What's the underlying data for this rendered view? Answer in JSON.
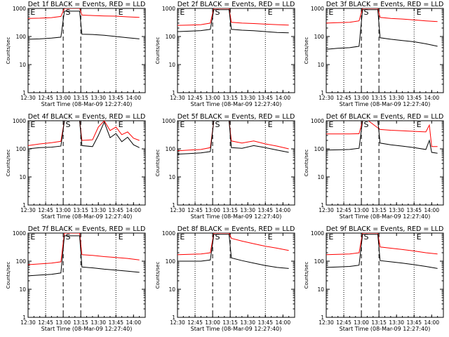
{
  "chart_data": {
    "type": "line",
    "colors": {
      "events": "#000000",
      "lld": "#ff0000",
      "axes": "#000000"
    },
    "x_ticks": [
      "12:30",
      "12:45",
      "13:00",
      "13:15",
      "13:30",
      "13:45",
      "14:00"
    ],
    "x_tick_minutes": [
      0,
      15,
      30,
      45,
      60,
      75,
      90
    ],
    "xlim_minutes": [
      0,
      100
    ],
    "xlabel": "Start Time (08-Mar-09 12:27:40)",
    "ylabel": "Counts/sec",
    "y_ticks": [
      "1",
      "10",
      "100",
      "1000"
    ],
    "y_tick_values": [
      1,
      10,
      100,
      1000
    ],
    "ylim": [
      1,
      1000
    ],
    "markers": {
      "labels": [
        "E",
        "S",
        "E"
      ],
      "dotted_minutes": [
        15,
        75
      ],
      "dashed_minutes": [
        30,
        45
      ],
      "label_minutes": [
        2,
        32,
        77
      ]
    },
    "panels": [
      {
        "title": "Det 1f BLACK = Events, RED = LLD",
        "events": [
          [
            0,
            80
          ],
          [
            10,
            82
          ],
          [
            20,
            88
          ],
          [
            28,
            95
          ],
          [
            31,
            800
          ],
          [
            44,
            800
          ],
          [
            46,
            120
          ],
          [
            55,
            118
          ],
          [
            65,
            110
          ],
          [
            75,
            100
          ],
          [
            85,
            90
          ],
          [
            95,
            82
          ]
        ],
        "lld": [
          [
            0,
            440
          ],
          [
            10,
            450
          ],
          [
            20,
            470
          ],
          [
            28,
            520
          ],
          [
            31,
            1000
          ],
          [
            44,
            1000
          ],
          [
            46,
            580
          ],
          [
            55,
            560
          ],
          [
            65,
            540
          ],
          [
            75,
            530
          ],
          [
            85,
            500
          ],
          [
            95,
            480
          ]
        ]
      },
      {
        "title": "Det 2f BLACK = Events, RED = LLD",
        "events": [
          [
            0,
            150
          ],
          [
            10,
            155
          ],
          [
            20,
            162
          ],
          [
            28,
            180
          ],
          [
            31,
            900
          ],
          [
            44,
            900
          ],
          [
            46,
            180
          ],
          [
            55,
            168
          ],
          [
            65,
            160
          ],
          [
            75,
            150
          ],
          [
            85,
            140
          ],
          [
            95,
            135
          ]
        ],
        "lld": [
          [
            0,
            250
          ],
          [
            10,
            255
          ],
          [
            20,
            265
          ],
          [
            28,
            300
          ],
          [
            31,
            1000
          ],
          [
            44,
            1000
          ],
          [
            46,
            320
          ],
          [
            55,
            300
          ],
          [
            65,
            290
          ],
          [
            75,
            275
          ],
          [
            85,
            265
          ],
          [
            95,
            255
          ]
        ]
      },
      {
        "title": "Det 3f BLACK = Events, RED = LLD",
        "events": [
          [
            0,
            35
          ],
          [
            10,
            38
          ],
          [
            20,
            40
          ],
          [
            28,
            45
          ],
          [
            31,
            900
          ],
          [
            44,
            900
          ],
          [
            46,
            90
          ],
          [
            55,
            80
          ],
          [
            65,
            72
          ],
          [
            75,
            65
          ],
          [
            85,
            55
          ],
          [
            95,
            45
          ]
        ],
        "lld": [
          [
            0,
            300
          ],
          [
            10,
            310
          ],
          [
            20,
            320
          ],
          [
            28,
            360
          ],
          [
            31,
            1000
          ],
          [
            44,
            1000
          ],
          [
            46,
            480
          ],
          [
            55,
            440
          ],
          [
            65,
            420
          ],
          [
            75,
            390
          ],
          [
            85,
            360
          ],
          [
            95,
            340
          ]
        ]
      },
      {
        "title": "Det 4f BLACK = Events, RED = LLD",
        "events": [
          [
            0,
            100
          ],
          [
            10,
            110
          ],
          [
            20,
            115
          ],
          [
            28,
            125
          ],
          [
            31,
            1000
          ],
          [
            44,
            1000
          ],
          [
            46,
            130
          ],
          [
            55,
            120
          ],
          [
            60,
            300
          ],
          [
            65,
            900
          ],
          [
            70,
            250
          ],
          [
            75,
            350
          ],
          [
            80,
            180
          ],
          [
            85,
            260
          ],
          [
            90,
            140
          ],
          [
            95,
            110
          ]
        ],
        "lld": [
          [
            0,
            130
          ],
          [
            10,
            150
          ],
          [
            20,
            165
          ],
          [
            28,
            185
          ],
          [
            31,
            1000
          ],
          [
            44,
            1000
          ],
          [
            46,
            200
          ],
          [
            55,
            210
          ],
          [
            60,
            600
          ],
          [
            65,
            1000
          ],
          [
            70,
            450
          ],
          [
            75,
            600
          ],
          [
            80,
            320
          ],
          [
            85,
            400
          ],
          [
            90,
            240
          ],
          [
            95,
            200
          ]
        ]
      },
      {
        "title": "Det 5f BLACK = Events, RED = LLD",
        "events": [
          [
            0,
            65
          ],
          [
            10,
            68
          ],
          [
            20,
            72
          ],
          [
            28,
            80
          ],
          [
            31,
            1000
          ],
          [
            44,
            1000
          ],
          [
            46,
            110
          ],
          [
            55,
            105
          ],
          [
            65,
            130
          ],
          [
            75,
            110
          ],
          [
            85,
            90
          ],
          [
            95,
            75
          ]
        ],
        "lld": [
          [
            0,
            85
          ],
          [
            10,
            90
          ],
          [
            20,
            95
          ],
          [
            28,
            110
          ],
          [
            31,
            1000
          ],
          [
            44,
            1000
          ],
          [
            46,
            190
          ],
          [
            55,
            160
          ],
          [
            65,
            190
          ],
          [
            75,
            150
          ],
          [
            85,
            125
          ],
          [
            95,
            100
          ]
        ]
      },
      {
        "title": "Det 6f BLACK = Events, RED = LLD",
        "events": [
          [
            0,
            90
          ],
          [
            10,
            92
          ],
          [
            20,
            95
          ],
          [
            28,
            105
          ],
          [
            31,
            1000
          ],
          [
            44,
            1000
          ],
          [
            46,
            160
          ],
          [
            55,
            140
          ],
          [
            65,
            125
          ],
          [
            75,
            110
          ],
          [
            85,
            95
          ],
          [
            88,
            200
          ],
          [
            90,
            75
          ],
          [
            95,
            70
          ]
        ],
        "lld": [
          [
            0,
            340
          ],
          [
            10,
            340
          ],
          [
            20,
            340
          ],
          [
            28,
            345
          ],
          [
            31,
            1000
          ],
          [
            36,
            1000
          ],
          [
            44,
            560
          ],
          [
            46,
            490
          ],
          [
            55,
            460
          ],
          [
            65,
            440
          ],
          [
            75,
            420
          ],
          [
            85,
            400
          ],
          [
            88,
            700
          ],
          [
            90,
            120
          ],
          [
            95,
            120
          ]
        ]
      },
      {
        "title": "Det 7f BLACK = Events, RED = LLD",
        "events": [
          [
            0,
            30
          ],
          [
            10,
            32
          ],
          [
            20,
            34
          ],
          [
            28,
            38
          ],
          [
            31,
            800
          ],
          [
            44,
            800
          ],
          [
            46,
            62
          ],
          [
            55,
            58
          ],
          [
            65,
            52
          ],
          [
            75,
            48
          ],
          [
            85,
            44
          ],
          [
            95,
            40
          ]
        ],
        "lld": [
          [
            0,
            75
          ],
          [
            10,
            80
          ],
          [
            20,
            85
          ],
          [
            28,
            95
          ],
          [
            31,
            1000
          ],
          [
            44,
            1000
          ],
          [
            46,
            170
          ],
          [
            55,
            160
          ],
          [
            65,
            145
          ],
          [
            75,
            135
          ],
          [
            85,
            125
          ],
          [
            95,
            110
          ]
        ]
      },
      {
        "title": "Det 8f BLACK = Events, RED = LLD",
        "events": [
          [
            0,
            100
          ],
          [
            10,
            100
          ],
          [
            20,
            100
          ],
          [
            28,
            110
          ],
          [
            31,
            900
          ],
          [
            44,
            900
          ],
          [
            46,
            130
          ],
          [
            55,
            105
          ],
          [
            65,
            85
          ],
          [
            75,
            70
          ],
          [
            85,
            60
          ],
          [
            95,
            55
          ]
        ],
        "lld": [
          [
            0,
            170
          ],
          [
            10,
            175
          ],
          [
            20,
            180
          ],
          [
            28,
            200
          ],
          [
            31,
            1000
          ],
          [
            44,
            1000
          ],
          [
            46,
            650
          ],
          [
            55,
            520
          ],
          [
            65,
            420
          ],
          [
            75,
            340
          ],
          [
            85,
            290
          ],
          [
            95,
            240
          ]
        ]
      },
      {
        "title": "Det 9f BLACK = Events, RED = LLD",
        "events": [
          [
            0,
            60
          ],
          [
            10,
            62
          ],
          [
            20,
            65
          ],
          [
            28,
            72
          ],
          [
            31,
            900
          ],
          [
            44,
            900
          ],
          [
            46,
            105
          ],
          [
            55,
            95
          ],
          [
            65,
            85
          ],
          [
            75,
            75
          ],
          [
            85,
            65
          ],
          [
            95,
            55
          ]
        ],
        "lld": [
          [
            0,
            170
          ],
          [
            10,
            175
          ],
          [
            20,
            180
          ],
          [
            28,
            200
          ],
          [
            31,
            1000
          ],
          [
            44,
            1000
          ],
          [
            46,
            320
          ],
          [
            55,
            290
          ],
          [
            65,
            260
          ],
          [
            75,
            230
          ],
          [
            85,
            200
          ],
          [
            95,
            180
          ]
        ]
      }
    ]
  }
}
